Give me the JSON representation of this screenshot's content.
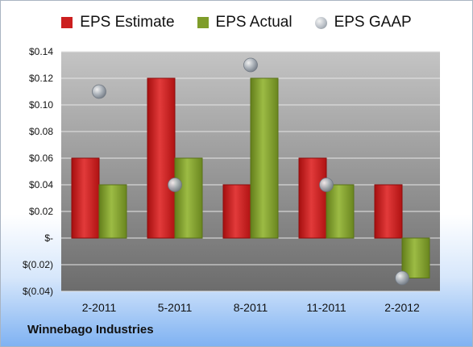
{
  "legend": {
    "estimate_label": "EPS Estimate",
    "actual_label": "EPS Actual",
    "gaap_label": "EPS GAAP"
  },
  "company": "Winnebago Industries",
  "colors": {
    "estimate": "#cc1f1f",
    "actual": "#7f9d2a",
    "gaap": "#a9b0b8",
    "plot_top": "#c4c4c4",
    "plot_bottom": "#6c6c6c"
  },
  "chart_data": {
    "type": "bar",
    "categories": [
      "2-2011",
      "5-2011",
      "8-2011",
      "11-2011",
      "2-2012"
    ],
    "series": [
      {
        "name": "EPS Estimate",
        "type": "bar",
        "values": [
          0.06,
          0.12,
          0.04,
          0.06,
          0.04
        ]
      },
      {
        "name": "EPS Actual",
        "type": "bar",
        "values": [
          0.04,
          0.06,
          0.12,
          0.04,
          -0.03
        ]
      },
      {
        "name": "EPS GAAP",
        "type": "scatter",
        "values": [
          0.11,
          0.04,
          0.13,
          0.04,
          -0.03
        ]
      }
    ],
    "ylim": [
      -0.04,
      0.14
    ],
    "yticks": [
      -0.04,
      -0.02,
      0,
      0.02,
      0.04,
      0.06,
      0.08,
      0.1,
      0.12,
      0.14
    ],
    "ytick_labels": [
      "$(0.04)",
      "$(0.02)",
      "$-",
      "$0.02",
      "$0.04",
      "$0.06",
      "$0.08",
      "$0.10",
      "$0.12",
      "$0.14"
    ],
    "grid": true,
    "legend_position": "top-center"
  }
}
